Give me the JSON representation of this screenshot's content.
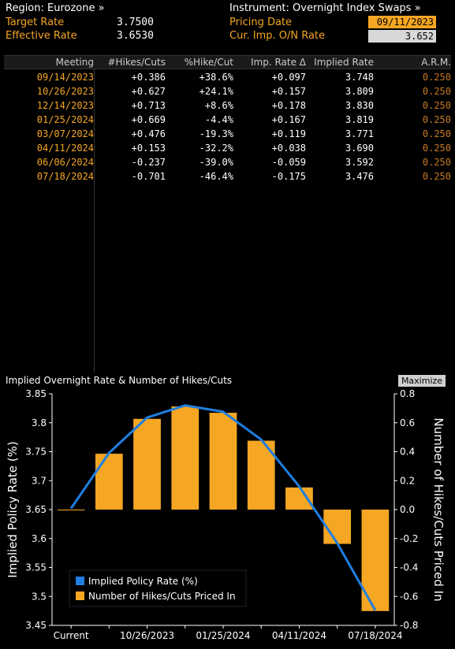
{
  "header": {
    "region": "Region: Eurozone »",
    "target_label": "Target Rate",
    "target_value": "3.7500",
    "effective_label": "Effective Rate",
    "effective_value": "3.6530",
    "instrument": "Instrument: Overnight Index Swaps »",
    "pricing_label": "Pricing Date",
    "pricing_value": "09/11/2023",
    "onr_label": "Cur. Imp. O/N Rate",
    "onr_value": "3.652"
  },
  "table": {
    "columns": [
      "Meeting",
      "#Hikes/Cuts",
      "%Hike/Cut",
      "Imp. Rate Δ",
      "Implied Rate",
      "A.R.M."
    ],
    "rows": [
      [
        "09/14/2023",
        "+0.386",
        "+38.6%",
        "+0.097",
        "3.748",
        "0.250"
      ],
      [
        "10/26/2023",
        "+0.627",
        "+24.1%",
        "+0.157",
        "3.809",
        "0.250"
      ],
      [
        "12/14/2023",
        "+0.713",
        "+8.6%",
        "+0.178",
        "3.830",
        "0.250"
      ],
      [
        "01/25/2024",
        "+0.669",
        "-4.4%",
        "+0.167",
        "3.819",
        "0.250"
      ],
      [
        "03/07/2024",
        "+0.476",
        "-19.3%",
        "+0.119",
        "3.771",
        "0.250"
      ],
      [
        "04/11/2024",
        "+0.153",
        "-32.2%",
        "+0.038",
        "3.690",
        "0.250"
      ],
      [
        "06/06/2024",
        "-0.237",
        "-39.0%",
        "-0.059",
        "3.592",
        "0.250"
      ],
      [
        "07/18/2024",
        "-0.701",
        "-46.4%",
        "-0.175",
        "3.476",
        "0.250"
      ]
    ]
  },
  "chart_title": "Implied Overnight Rate & Number of Hikes/Cuts",
  "maximize_label": "Maximize",
  "colors": {
    "orange": "#f5a623",
    "blue": "#1f7ee0",
    "arm": "#c77a24"
  },
  "chart_data": {
    "type": "bar",
    "categories": [
      "Current",
      "09/14/2023",
      "10/26/2023",
      "12/14/2023",
      "01/25/2024",
      "03/07/2024",
      "04/11/2024",
      "06/06/2024",
      "07/18/2024"
    ],
    "x_tick_labels": [
      "Current",
      "10/26/2023",
      "01/25/2024",
      "04/11/2024",
      "07/18/2024"
    ],
    "series": [
      {
        "name": "Implied Policy Rate (%)",
        "type": "line",
        "axis": "left",
        "values": [
          3.652,
          3.748,
          3.809,
          3.83,
          3.819,
          3.771,
          3.69,
          3.592,
          3.476
        ]
      },
      {
        "name": "Number of Hikes/Cuts Priced In",
        "type": "bar",
        "axis": "right",
        "values": [
          0.0,
          0.386,
          0.627,
          0.713,
          0.669,
          0.476,
          0.153,
          -0.237,
          -0.701
        ]
      }
    ],
    "ylabel": "Implied Policy Rate (%)",
    "y2label": "Number of Hikes/Cuts Priced In",
    "ylim": [
      3.45,
      3.85
    ],
    "y_ticks": [
      "3.85",
      "3.8",
      "3.75",
      "3.7",
      "3.65",
      "3.6",
      "3.55",
      "3.5",
      "3.45"
    ],
    "y2lim": [
      -0.8,
      0.8
    ],
    "y2_ticks": [
      "0.8",
      "0.6",
      "0.4",
      "0.2",
      "0.0",
      "-0.2",
      "-0.4",
      "-0.6",
      "-0.8"
    ],
    "legend_position": "bottom-left",
    "grid": false
  }
}
